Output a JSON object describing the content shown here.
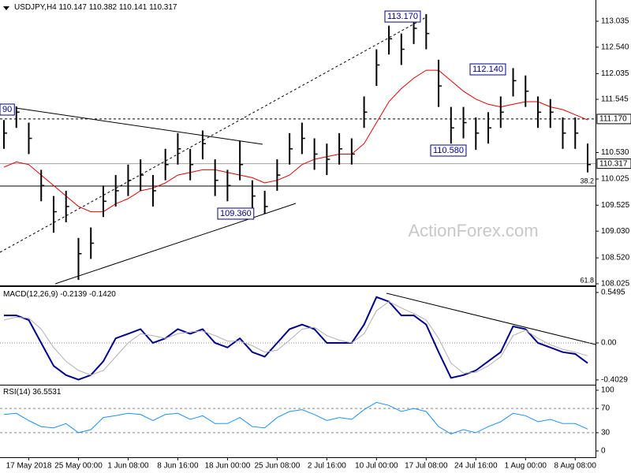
{
  "chart_data": [
    {
      "type": "ohlc",
      "symbol": "USDJPY,H4",
      "ohlc": [
        110.147,
        110.382,
        110.141,
        110.317
      ],
      "categories": [
        null,
        null,
        "17 May 2018",
        null,
        null,
        null,
        "25 May 00:00",
        null,
        null,
        null,
        "1 Jun 08:00",
        null,
        null,
        null,
        "8 Jun 16:00",
        null,
        null,
        null,
        "18 Jun 00:00",
        null,
        null,
        null,
        "25 Jun 08:00",
        null,
        null,
        null,
        "2 Jul 16:00",
        null,
        null,
        null,
        "10 Jul 00:00",
        null,
        null,
        null,
        "17 Jul 08:00",
        null,
        null,
        null,
        "24 Jul 16:00",
        null,
        null,
        null,
        "1 Aug 00:00",
        null,
        null,
        null,
        "8 Aug 08:00",
        null
      ],
      "close": [
        110.9,
        111.3,
        110.8,
        109.9,
        109.4,
        109.5,
        108.6,
        108.8,
        109.6,
        109.8,
        110.0,
        110.1,
        109.8,
        110.3,
        110.6,
        110.3,
        110.7,
        110.0,
        109.9,
        110.3,
        109.7,
        109.5,
        110.1,
        110.6,
        110.8,
        110.5,
        110.4,
        110.6,
        110.5,
        111.3,
        112.2,
        112.7,
        112.5,
        112.9,
        112.8,
        111.8,
        111.0,
        111.1,
        110.9,
        111.0,
        111.3,
        111.9,
        111.7,
        111.3,
        111.3,
        110.9,
        110.9,
        110.3
      ],
      "high": [
        111.15,
        111.41,
        111.1,
        110.2,
        109.7,
        109.8,
        108.9,
        109.1,
        109.9,
        110.1,
        110.3,
        110.4,
        110.1,
        110.6,
        110.9,
        110.6,
        110.95,
        110.4,
        110.2,
        110.75,
        110.0,
        109.8,
        110.4,
        110.9,
        111.1,
        110.8,
        110.7,
        110.9,
        110.8,
        111.6,
        112.5,
        112.95,
        112.8,
        113.1,
        113.17,
        112.3,
        111.4,
        111.4,
        111.2,
        111.3,
        111.6,
        112.14,
        112.0,
        111.6,
        111.55,
        111.2,
        111.2,
        110.7
      ],
      "low": [
        110.6,
        111.0,
        110.5,
        109.6,
        109.0,
        109.2,
        108.1,
        108.5,
        109.3,
        109.5,
        109.7,
        109.8,
        109.5,
        110.0,
        110.3,
        110.0,
        110.4,
        109.7,
        109.6,
        110.0,
        109.4,
        109.36,
        109.8,
        110.3,
        110.5,
        110.2,
        110.1,
        110.3,
        110.3,
        111.0,
        111.8,
        112.4,
        112.2,
        112.6,
        112.5,
        111.4,
        110.7,
        110.8,
        110.58,
        110.7,
        111.0,
        111.6,
        111.4,
        111.0,
        111.0,
        110.6,
        110.6,
        110.15
      ],
      "color": "#000000",
      "ma": {
        "color": "#e00000",
        "values": [
          110.25,
          110.35,
          110.3,
          110.1,
          109.9,
          109.7,
          109.5,
          109.4,
          109.4,
          109.55,
          109.65,
          109.8,
          109.85,
          109.95,
          110.1,
          110.15,
          110.2,
          110.2,
          110.15,
          110.1,
          110.05,
          109.95,
          110.0,
          110.1,
          110.3,
          110.4,
          110.45,
          110.5,
          110.5,
          110.7,
          111.1,
          111.5,
          111.75,
          111.95,
          112.1,
          112.1,
          111.9,
          111.7,
          111.55,
          111.45,
          111.4,
          111.45,
          111.5,
          111.5,
          111.4,
          111.35,
          111.25,
          111.15
        ]
      },
      "ylim": [
        107.98,
        113.44
      ],
      "yticks": [
        113.035,
        {
          "value": 112.54,
          "label": "112.540"
        },
        112.035,
        111.545,
        {
          "value": 110.53,
          "label": "110.530"
        },
        110.025,
        109.525,
        {
          "value": 109.03,
          "label": "109.030"
        },
        {
          "value": 108.52,
          "label": "108.520"
        },
        108.025
      ],
      "level": {
        "value": 111.17,
        "label": "111.170"
      },
      "last": {
        "value": 110.317,
        "label": "110.317"
      },
      "fib": [
        {
          "ratio": 38.2,
          "price": 109.89
        },
        {
          "ratio": 61.8,
          "price": 107.99
        }
      ],
      "annotations": [
        "113.170",
        "112.140",
        "110.580",
        "109.360",
        "90"
      ],
      "watermark": "ActionForex.com"
    },
    {
      "type": "line",
      "title": "MACD(12,26,9)",
      "readout": [
        -0.2139,
        {
          "value": -0.142,
          "label": "-0.1420"
        }
      ],
      "series": [
        {
          "color": "#00008b",
          "values": [
            0.3,
            0.3,
            0.25,
            0.0,
            -0.25,
            -0.35,
            -0.4,
            -0.35,
            -0.2,
            0.05,
            0.1,
            0.15,
            0.0,
            0.05,
            0.15,
            0.1,
            0.15,
            0.0,
            -0.05,
            0.05,
            -0.1,
            -0.15,
            0.0,
            0.15,
            0.2,
            0.15,
            0.0,
            0.0,
            0.0,
            0.2,
            0.5,
            0.45,
            0.3,
            0.3,
            0.2,
            -0.1,
            -0.38,
            -0.35,
            -0.3,
            -0.2,
            -0.1,
            0.18,
            0.15,
            0.0,
            -0.05,
            -0.1,
            -0.12,
            -0.22
          ]
        },
        {
          "color": "#b0b0b0",
          "values": [
            0.25,
            0.28,
            0.27,
            0.15,
            -0.05,
            -0.2,
            -0.3,
            -0.35,
            -0.3,
            -0.15,
            0.0,
            0.1,
            0.08,
            0.05,
            0.1,
            0.12,
            0.13,
            0.08,
            0.02,
            0.02,
            -0.03,
            -0.1,
            -0.08,
            0.03,
            0.15,
            0.17,
            0.08,
            0.03,
            0.0,
            0.1,
            0.35,
            0.45,
            0.38,
            0.32,
            0.25,
            0.05,
            -0.22,
            -0.33,
            -0.32,
            -0.25,
            -0.15,
            0.08,
            0.14,
            0.05,
            -0.02,
            -0.07,
            -0.1,
            -0.14
          ]
        }
      ],
      "ylim": [
        -0.455,
        0.601
      ],
      "yticks": [
        0.5495,
        {
          "value": 0,
          "label": "0.00"
        },
        -0.4029
      ],
      "levels": [
        0
      ]
    },
    {
      "type": "line",
      "title": "RSI(14)",
      "readout": [
        36.5531
      ],
      "series": [
        {
          "color": "#1e90ff",
          "values": [
            60,
            62,
            50,
            40,
            38,
            45,
            30,
            35,
            55,
            58,
            62,
            60,
            50,
            60,
            62,
            52,
            58,
            45,
            45,
            55,
            40,
            38,
            55,
            65,
            68,
            60,
            50,
            55,
            52,
            68,
            80,
            75,
            65,
            70,
            65,
            40,
            28,
            35,
            30,
            40,
            48,
            62,
            58,
            48,
            52,
            45,
            45,
            36
          ]
        }
      ],
      "ylim": [
        -10.4,
        106.5
      ],
      "yticks": [
        100,
        70,
        30,
        0
      ],
      "levels": [
        70,
        30
      ]
    }
  ]
}
